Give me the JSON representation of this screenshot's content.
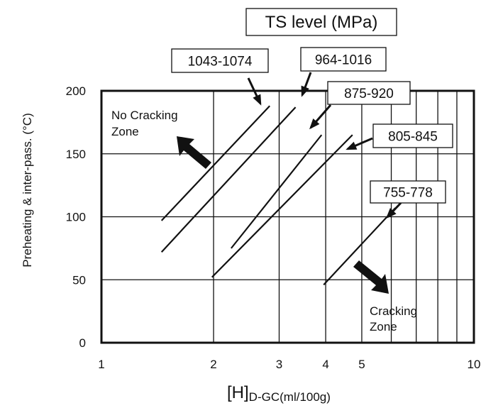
{
  "chart_data": {
    "type": "line",
    "x_scale": "log",
    "xlim": [
      1,
      10
    ],
    "ylim": [
      0,
      200
    ],
    "y_ticks": [
      0,
      50,
      100,
      150,
      200
    ],
    "x_ticks": [
      1,
      2,
      3,
      4,
      5,
      10
    ],
    "x_tick_labels": [
      "1",
      "2",
      "3",
      "4",
      "5",
      "10"
    ],
    "grid": true,
    "xlabel_main": "[H]",
    "xlabel_sub": "D-GC",
    "xlabel_unit": "(ml/100g)",
    "ylabel": "Preheating & inter-pass. (°C)",
    "legend_title": "TS level (MPa)",
    "series": [
      {
        "name": "1043-1074",
        "x": [
          1.45,
          2.83
        ],
        "y": [
          97,
          188
        ]
      },
      {
        "name": "964-1016",
        "x": [
          1.45,
          3.32
        ],
        "y": [
          72,
          187
        ]
      },
      {
        "name": "875-920",
        "x": [
          2.23,
          3.9
        ],
        "y": [
          75,
          165
        ]
      },
      {
        "name": "805-845",
        "x": [
          1.98,
          4.72
        ],
        "y": [
          52,
          165
        ]
      },
      {
        "name": "755-778",
        "x": [
          3.95,
          6.15
        ],
        "y": [
          46,
          107
        ]
      }
    ],
    "annotations": [
      {
        "text": "No Cracking",
        "text2": "Zone",
        "direction": "up-left"
      },
      {
        "text": "Cracking",
        "text2": "Zone",
        "direction": "down-right"
      }
    ]
  }
}
